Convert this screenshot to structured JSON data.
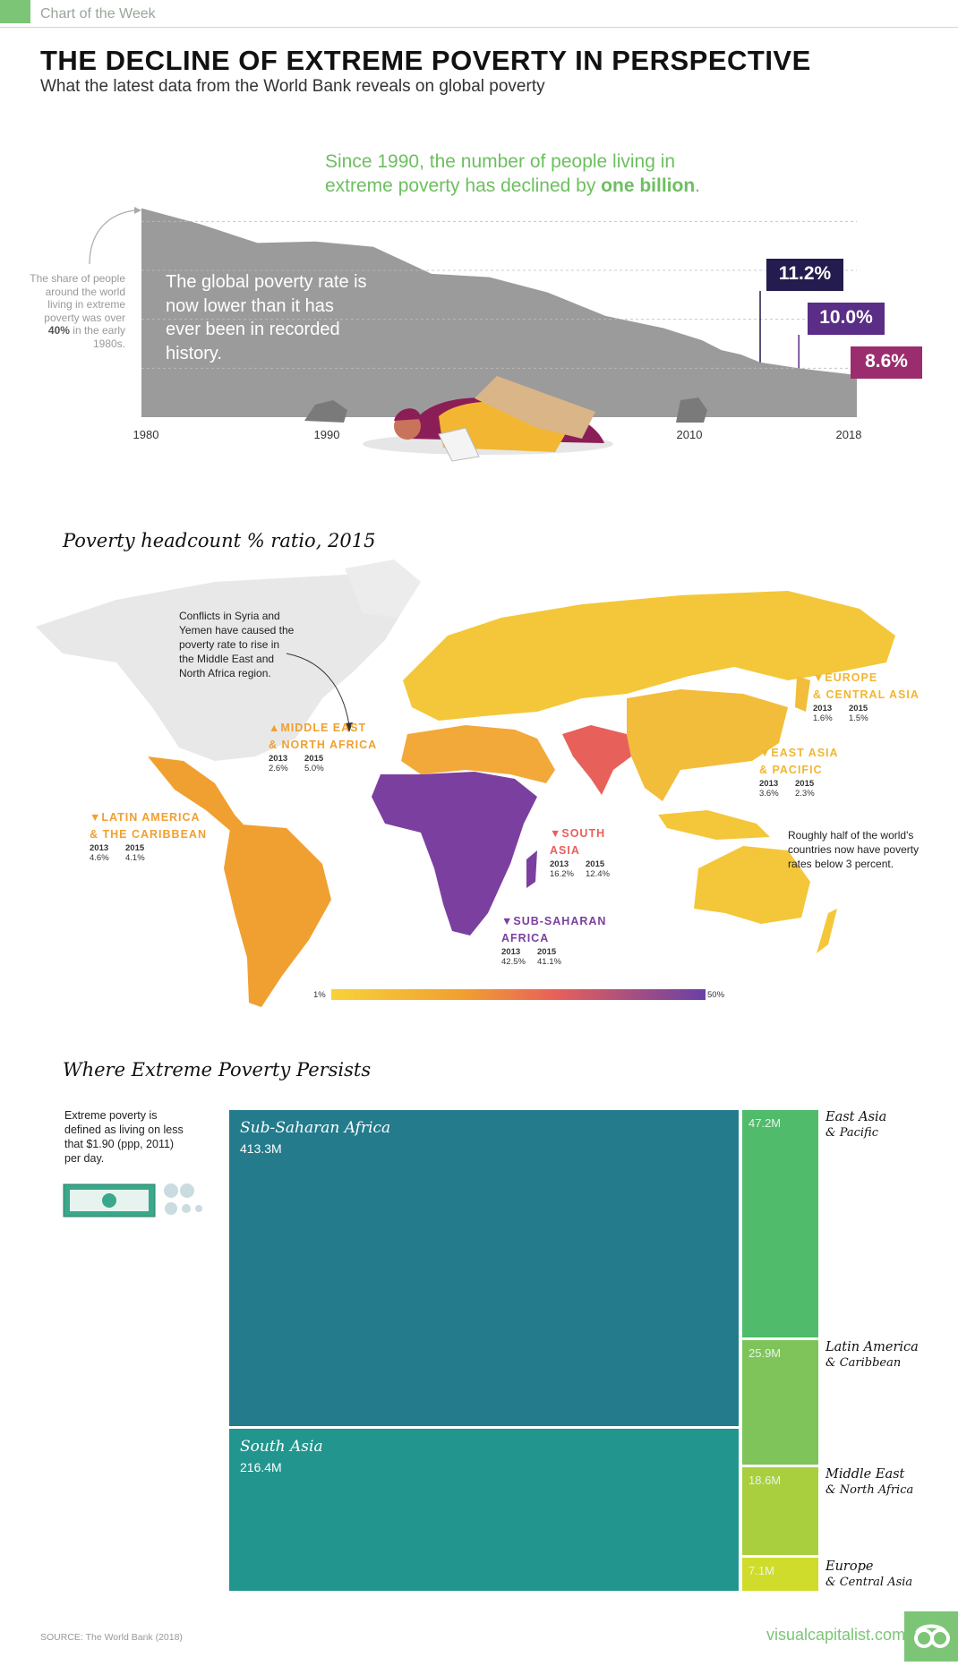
{
  "header": {
    "kicker": "Chart of the Week",
    "title": "THE DECLINE OF EXTREME POVERTY IN PERSPECTIVE",
    "subtitle": "What the latest data from the World Bank reveals on global poverty"
  },
  "colors": {
    "accent_green": "#7cc576",
    "area_gray": "#9b9b9b",
    "navy": "#241b4e",
    "purple": "#5a2d86",
    "magenta": "#9b2d6e"
  },
  "section1": {
    "headline_line1": "Since 1990, the number of people living in",
    "headline_line2_pre": "extreme poverty has declined by ",
    "headline_line2_bold": "one billion",
    "headline_line2_post": ".",
    "side_note_pre": "The share of people around the world living in extreme poverty was over ",
    "side_note_bold": "40%",
    "side_note_post": " in the early 1980s.",
    "rate_note": "The global poverty rate is now lower than it has ever been in recorded history.",
    "callouts": [
      "11.2%",
      "10.0%",
      "8.6%"
    ]
  },
  "chart_data": {
    "type": "area",
    "title": "",
    "xlabel": "",
    "ylabel": "",
    "x_ticks": [
      "1980",
      "1990",
      "2010",
      "2018"
    ],
    "x": [
      1981,
      1984,
      1987,
      1990,
      1993,
      1996,
      1999,
      2002,
      2005,
      2008,
      2010,
      2011,
      2012,
      2013,
      2015,
      2018
    ],
    "values": [
      42.7,
      39.5,
      35.6,
      35.9,
      34.8,
      29.3,
      28.6,
      25.5,
      20.7,
      18.2,
      15.7,
      13.7,
      12.8,
      11.2,
      10.0,
      8.6
    ],
    "xlim": [
      1981,
      2018
    ],
    "ylim": [
      0,
      45
    ],
    "annotations": [
      {
        "x": 2013,
        "label": "11.2%"
      },
      {
        "x": 2015,
        "label": "10.0%"
      },
      {
        "x": 2018,
        "label": "8.6%"
      }
    ]
  },
  "map": {
    "title": "Poverty headcount % ratio, 2015",
    "conflict_note": "Conflicts in Syria and Yemen have caused the poverty rate to rise in the Middle East and North Africa region.",
    "half_note": "Roughly half of the world's countries now have poverty rates below 3 percent.",
    "scale_min": "1%",
    "scale_max": "50%",
    "year_a": "2013",
    "year_b": "2015",
    "regions": {
      "eca": {
        "arrow": "▼",
        "l1": "EUROPE",
        "l2": "& CENTRAL ASIA",
        "v2013": "1.6%",
        "v2015": "1.5%",
        "color": "#f2b632"
      },
      "eap": {
        "arrow": "▼",
        "l1": "EAST ASIA",
        "l2": "& PACIFIC",
        "v2013": "3.6%",
        "v2015": "2.3%",
        "color": "#f2b632"
      },
      "mena": {
        "arrow": "▲",
        "l1": "MIDDLE EAST",
        "l2": "& NORTH AFRICA",
        "v2013": "2.6%",
        "v2015": "5.0%",
        "color": "#f0a030"
      },
      "lac": {
        "arrow": "▼",
        "l1": "LATIN AMERICA",
        "l2": "& THE CARIBBEAN",
        "v2013": "4.6%",
        "v2015": "4.1%",
        "color": "#f0a030"
      },
      "sa": {
        "arrow": "▼",
        "l1": "SOUTH",
        "l2": "ASIA",
        "v2013": "16.2%",
        "v2015": "12.4%",
        "color": "#e8605a"
      },
      "ssa": {
        "arrow": "▼",
        "l1": "SUB-SAHARAN",
        "l2": "AFRICA",
        "v2013": "42.5%",
        "v2015": "41.1%",
        "color": "#7b3fa0"
      }
    }
  },
  "treemap": {
    "title": "Where Extreme Poverty Persists",
    "definition": "Extreme poverty is defined as living on less that $1.90 (ppp, 2011) per day.",
    "cells": [
      {
        "name": "Sub-Saharan Africa",
        "value": "413.3M",
        "color": "#237b8c"
      },
      {
        "name": "South Asia",
        "value": "216.4M",
        "color": "#22958e"
      },
      {
        "value": "47.2M",
        "side1": "East Asia",
        "side2": "& Pacific",
        "color": "#4fbb6b"
      },
      {
        "value": "25.9M",
        "side1": "Latin America",
        "side2": "& Caribbean",
        "color": "#7ec45a"
      },
      {
        "value": "18.6M",
        "side1": "Middle East",
        "side2": "& North Africa",
        "color": "#a9cf3f"
      },
      {
        "value": "7.1M",
        "side1": "Europe",
        "side2": "& Central Asia",
        "color": "#cfdc2c"
      }
    ]
  },
  "footer": {
    "source": "SOURCE: The World Bank (2018)",
    "brand": "visualcapitalist.com"
  }
}
